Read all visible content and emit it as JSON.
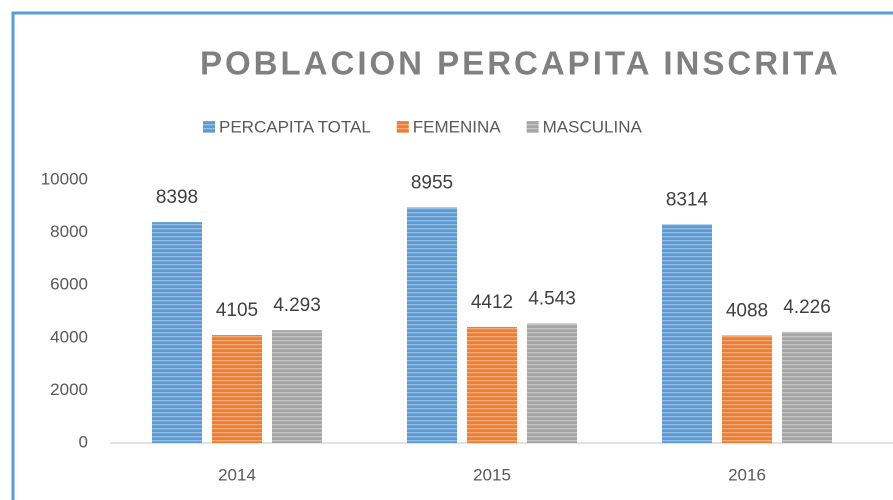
{
  "chart_data": {
    "type": "bar",
    "title": "POBLACION PERCAPITA INSCRITA",
    "categories": [
      "2014",
      "2015",
      "2016"
    ],
    "series": [
      {
        "name": "PERCAPITA TOTAL",
        "color": "#5b9bd5",
        "values": [
          8398,
          8955,
          8314
        ]
      },
      {
        "name": "FEMENINA",
        "color": "#ed7d31",
        "values": [
          4105,
          4412,
          4088
        ]
      },
      {
        "name": "MASCULINA",
        "color": "#a5a5a5",
        "values": [
          4293,
          4543,
          4226
        ],
        "value_labels": [
          "4.293",
          "4.543",
          "4.226"
        ]
      }
    ],
    "ylim": [
      0,
      10000
    ],
    "yticks": [
      0,
      2000,
      4000,
      6000,
      8000,
      10000
    ],
    "grid": false,
    "legend": "top"
  }
}
